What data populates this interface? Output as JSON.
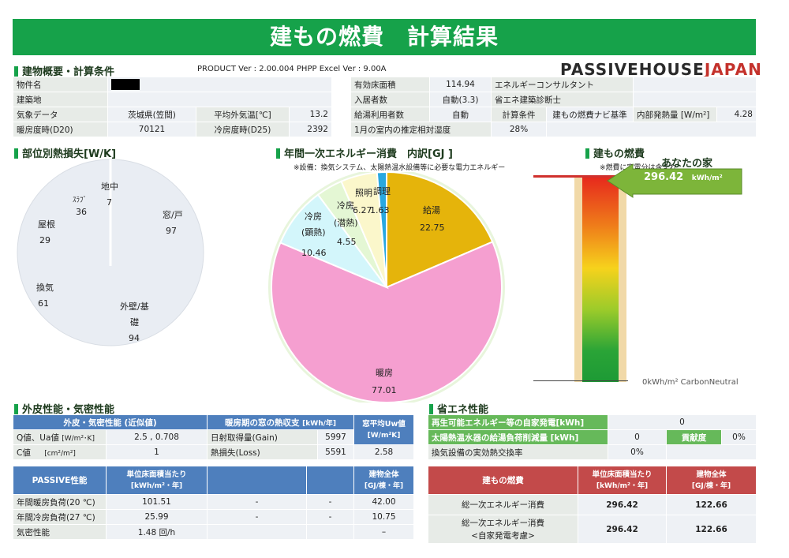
{
  "title": "建もの燃費　計算結果",
  "building": {
    "header": "建物概要・計算条件",
    "version": "PRODUCT Ver : 2.00.004  PHPP Excel Ver : 9.00A",
    "brand_a": "PASSIVEHOUSE",
    "brand_b": "JAPAN",
    "property_label": "物件名",
    "site_label": "建築地",
    "climate_label": "気象データ",
    "climate_value": "茨城県(笠間)",
    "avg_temp_label": "平均外気温[℃]",
    "avg_temp_value": "13.2",
    "hdd_label": "暖房度時(D20)",
    "hdd_value": "70121",
    "cdd_label": "冷房度時(D25)",
    "cdd_value": "2392",
    "floor_area_label": "有効床面積",
    "floor_area_value": "114.94",
    "occupants_label": "入居者数",
    "occupants_value": "自動(3.3)",
    "hot_water_label": "給湯利用者数",
    "hot_water_value": "自動",
    "humidity_label": "1月の室内の推定相対湿度",
    "humidity_value": "28%",
    "consultant_label": "エネルギーコンサルタント",
    "diagnostician_label": "省エネ建築診断士",
    "calc_label": "計算条件",
    "calc_value": "建もの燃費ナビ基準",
    "internal_gain_label": "内部発熱量 [W/m²]",
    "internal_gain_value": "4.28"
  },
  "heat_loss": {
    "header": "部位別熱損失[W/K]",
    "chart_data": {
      "type": "pie",
      "categories": [
        "地中",
        "窓/戸",
        "外壁/基礎",
        "換気",
        "屋根",
        "ｽﾗﾌﾞ"
      ],
      "values": [
        7,
        97,
        94,
        61,
        29,
        36
      ]
    },
    "labels": {
      "ground": "地中",
      "ground_v": "7",
      "window": "窓/戸",
      "window_v": "97",
      "wall_a": "外壁/基",
      "wall_b": "礎",
      "wall_v": "94",
      "vent": "換気",
      "vent_v": "61",
      "roof": "屋根",
      "roof_v": "29",
      "slab": "ｽﾗﾌﾞ",
      "slab_v": "36"
    }
  },
  "energy": {
    "header": "年間一次エネルギー消費　内訳[GJ ]",
    "note": "※設備：換気システム、太陽熱温水設備等に必要な電力エネルギー",
    "chart_data": {
      "type": "pie",
      "categories": [
        "給湯",
        "暖房",
        "冷房(顕熱)",
        "冷房(潜熱)",
        "照明",
        "調理"
      ],
      "values": [
        22.75,
        77.01,
        10.46,
        4.55,
        6.27,
        1.63
      ],
      "colors": [
        "#e5b40b",
        "#f59fd0",
        "#d3f6fb",
        "#e4f7d4",
        "#fbf7cb",
        "#29a8e0"
      ]
    },
    "labels": {
      "hw": "給湯",
      "hw_v": "22.75",
      "heat": "暖房",
      "heat_v": "77.01",
      "cool_s_a": "冷房",
      "cool_s_b": "(顕熱)",
      "cool_s_v": "10.46",
      "cool_l_a": "冷房",
      "cool_l_b": "(潜熱)",
      "cool_l_v": "4.55",
      "light": "照明",
      "light_v": "6.27",
      "cook": "調理",
      "cook_v": "1.63"
    }
  },
  "fuel": {
    "header": "建もの燃費",
    "note": "※燃費に家電分は含まれ",
    "your_home": "あなたの家",
    "value": "296.42",
    "unit": "kWh/m²",
    "bottom": "0kWh/m² CarbonNeutral"
  },
  "envelope": {
    "header": "外皮性能・気密性能",
    "col1": "外皮・気密性能 (近似値)",
    "col2": "暖房期の窓の熱収支",
    "col2_unit": "[kWh/年]",
    "col3_a": "窓平均Uw値",
    "col3_b": "[W/m²K]",
    "q_label": "Q値、Ua値",
    "q_unit": "[W/m²･K]",
    "q_value": "2.5 , 0.708",
    "c_label": "C値",
    "c_unit": "[cm²/m²]",
    "c_value": "1",
    "gain_label": "日射取得量(Gain)",
    "gain_value": "5997",
    "loss_label": "熱損失(Loss)",
    "loss_value": "5591",
    "uw_value": "2.58"
  },
  "passive": {
    "header": "PASSIVE性能",
    "col1_a": "単位床面積当たり",
    "col1_b": "[kWh/m²・年]",
    "col4_a": "建物全体",
    "col4_b": "[GJ/棟・年]",
    "rows": [
      {
        "label": "年間暖房負荷(20 ℃)",
        "v1": "101.51",
        "v2": "-",
        "v3": "-",
        "v4": "42.00"
      },
      {
        "label": "年間冷房負荷(27 ℃)",
        "v1": "25.99",
        "v2": "-",
        "v3": "-",
        "v4": "10.75"
      },
      {
        "label": "気密性能",
        "v1": "1.48 回/h",
        "v2": "",
        "v3": "",
        "v4": "–"
      }
    ]
  },
  "savings": {
    "header": "省エネ性能",
    "pv_label": "再生可能エネルギー等の自家発電[kWh]",
    "pv_value": "0",
    "solar_label": "太陽熱温水器の給湯負荷削減量 [kWh]",
    "solar_value": "0",
    "contrib_label": "貢献度",
    "contrib_value": "0%",
    "hr_label": "換気設備の実効熱交換率",
    "hr_value": "0%"
  },
  "fuel_table": {
    "header": "建もの燃費",
    "col1_a": "単位床面積当たり",
    "col1_b": "[kWh/m²・年]",
    "col2_a": "建物全体",
    "col2_b": "[GJ/棟・年]",
    "row1_label": "総一次エネルギー消費",
    "row1_v1": "296.42",
    "row1_v2": "122.66",
    "row2_label_a": "総一次エネルギー消費",
    "row2_label_b": "<自家発電考慮>",
    "row2_v1": "296.42",
    "row2_v2": "122.66"
  }
}
